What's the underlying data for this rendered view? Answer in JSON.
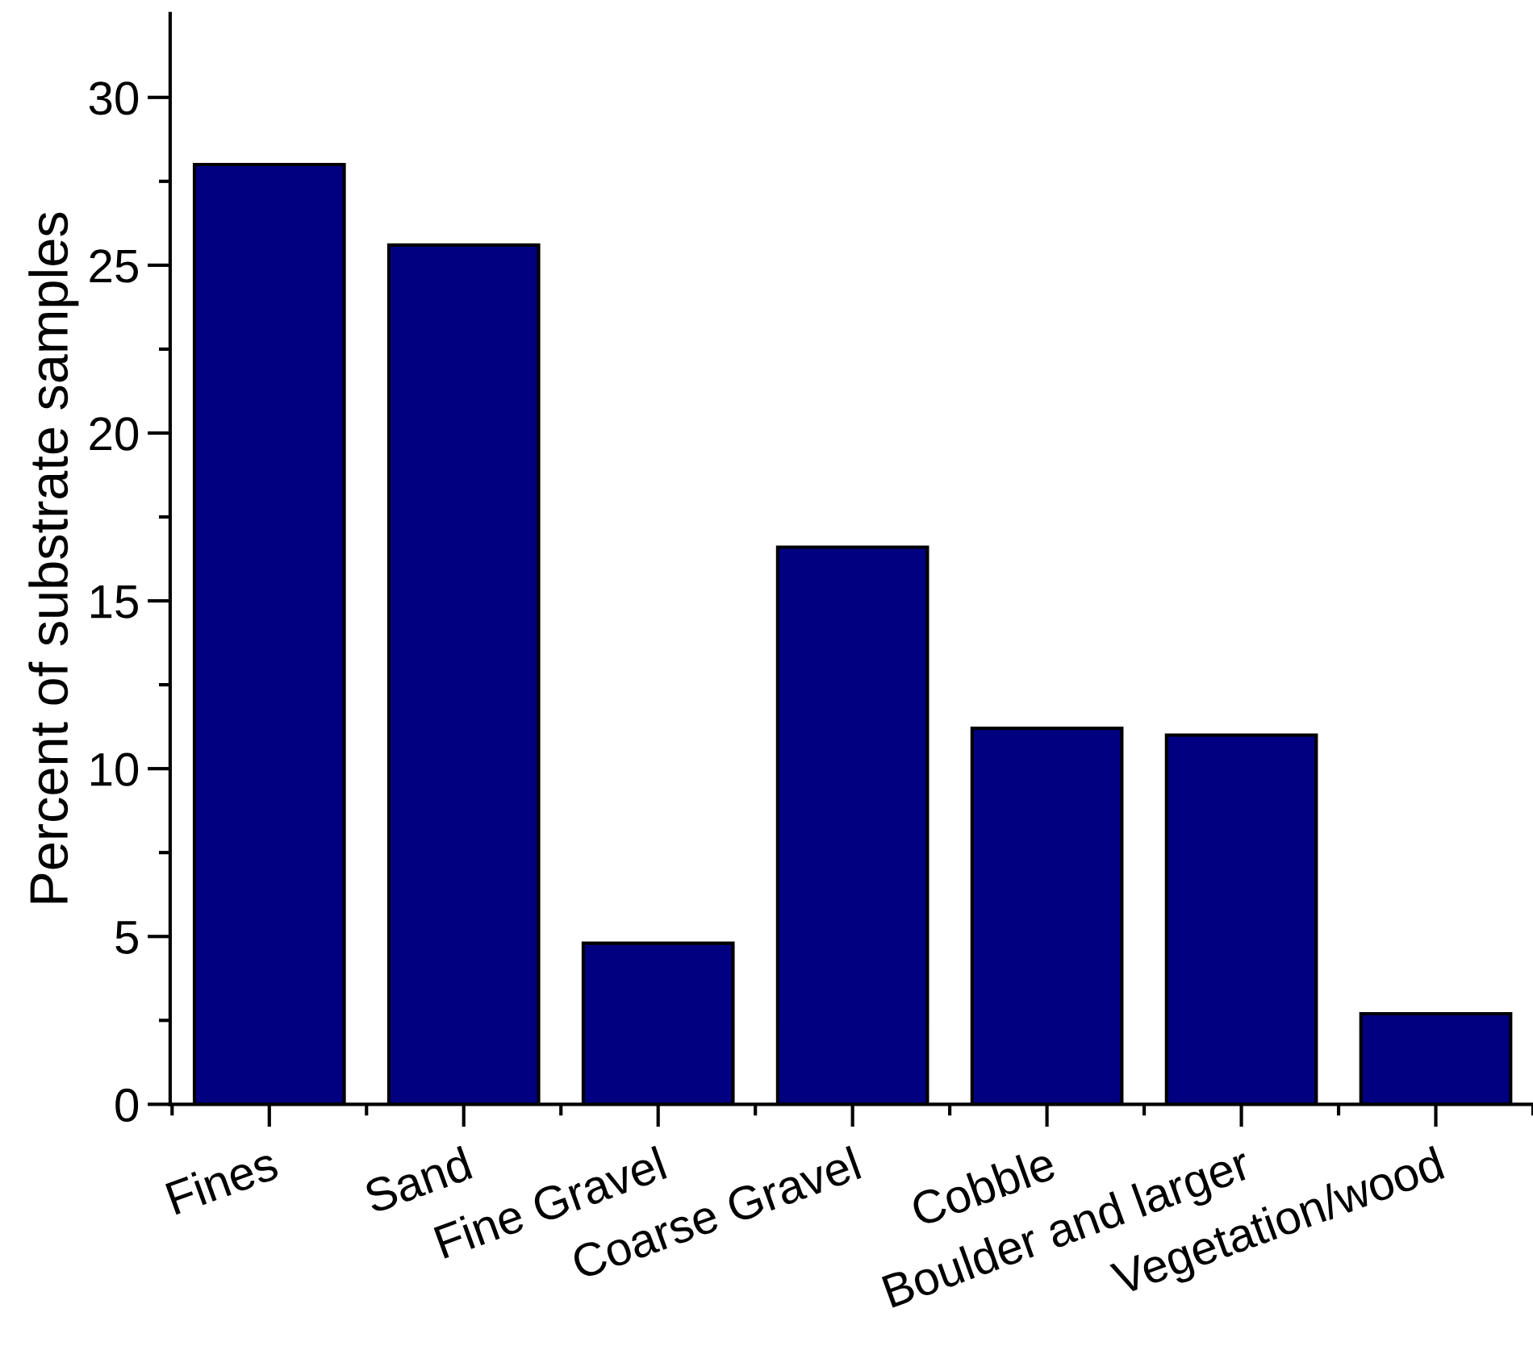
{
  "chart_data": {
    "type": "bar",
    "ylabel": "Percent of substrate samples",
    "categories": [
      "Fines",
      "Sand",
      "Fine Gravel",
      "Coarse Gravel",
      "Cobble",
      "Boulder and larger",
      "Vegetation/wood"
    ],
    "values": [
      28.0,
      25.6,
      4.8,
      16.6,
      11.2,
      11.0,
      2.7
    ],
    "color": "#000080",
    "ylim": [
      0,
      32.5
    ],
    "yticks": [
      0,
      {
        "value": 2.5,
        "label": null
      },
      5,
      {
        "value": 7.5,
        "label": null
      },
      10,
      {
        "value": 12.5,
        "label": null
      },
      15,
      {
        "value": 17.5,
        "label": null
      },
      20,
      {
        "value": 22.5,
        "label": null
      },
      25,
      {
        "value": 27.5,
        "label": null
      },
      30
    ],
    "grid": false
  }
}
